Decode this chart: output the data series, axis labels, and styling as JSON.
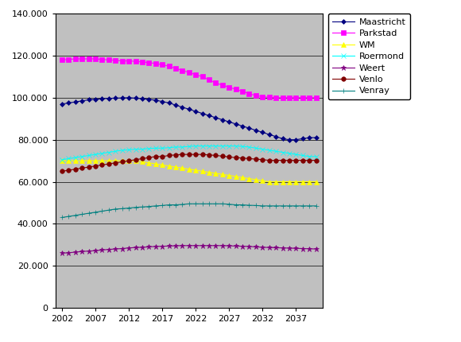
{
  "years": [
    2002,
    2003,
    2004,
    2005,
    2006,
    2007,
    2008,
    2009,
    2010,
    2011,
    2012,
    2013,
    2014,
    2015,
    2016,
    2017,
    2018,
    2019,
    2020,
    2021,
    2022,
    2023,
    2024,
    2025,
    2026,
    2027,
    2028,
    2029,
    2030,
    2031,
    2032,
    2033,
    2034,
    2035,
    2036,
    2037,
    2038,
    2039,
    2040
  ],
  "Maastricht": [
    97000,
    97500,
    98000,
    98500,
    99000,
    99200,
    99500,
    99700,
    99800,
    99900,
    100000,
    99800,
    99500,
    99200,
    98800,
    98200,
    97500,
    96500,
    95500,
    94500,
    93500,
    92500,
    91500,
    90500,
    89500,
    88500,
    87500,
    86500,
    85500,
    84500,
    83500,
    82500,
    81500,
    80500,
    80000,
    80000,
    80500,
    81000,
    81000
  ],
  "Parkstad": [
    118000,
    118200,
    118500,
    118500,
    118500,
    118500,
    118200,
    118000,
    117800,
    117500,
    117500,
    117300,
    117000,
    116700,
    116300,
    115700,
    115000,
    114000,
    113000,
    112000,
    111000,
    110000,
    108500,
    107000,
    106000,
    105000,
    104000,
    103000,
    102000,
    101000,
    100500,
    100200,
    100000,
    100000,
    100000,
    100000,
    100000,
    100000,
    100000
  ],
  "WM": [
    70000,
    70000,
    70000,
    70000,
    70000,
    70000,
    70000,
    70000,
    70000,
    70000,
    70000,
    70000,
    69500,
    69000,
    68500,
    68000,
    67500,
    67000,
    66500,
    66000,
    65500,
    65000,
    64500,
    64000,
    63500,
    63000,
    62500,
    62000,
    61500,
    61000,
    60500,
    60000,
    60000,
    60000,
    60000,
    60000,
    60000,
    60000,
    60000
  ],
  "Roermond": [
    70500,
    71000,
    71500,
    72000,
    72500,
    73000,
    73500,
    74000,
    74500,
    75000,
    75200,
    75500,
    75500,
    75800,
    76000,
    76000,
    76200,
    76500,
    76500,
    76800,
    77000,
    77000,
    77000,
    77000,
    77000,
    77000,
    77000,
    76800,
    76500,
    76000,
    75500,
    75000,
    74500,
    74000,
    73500,
    73000,
    72500,
    72000,
    72000
  ],
  "Weert": [
    26000,
    26200,
    26500,
    26800,
    27000,
    27200,
    27500,
    27800,
    28000,
    28200,
    28500,
    28700,
    28800,
    29000,
    29200,
    29300,
    29400,
    29500,
    29600,
    29600,
    29600,
    29600,
    29600,
    29600,
    29600,
    29500,
    29400,
    29300,
    29200,
    29000,
    28800,
    28700,
    28600,
    28500,
    28400,
    28300,
    28200,
    28100,
    28000
  ],
  "Venlo": [
    65000,
    65500,
    66000,
    66500,
    67000,
    67500,
    68000,
    68500,
    69000,
    69500,
    70000,
    70500,
    71000,
    71500,
    72000,
    72000,
    72500,
    72800,
    73000,
    73000,
    73000,
    73000,
    72800,
    72500,
    72200,
    71800,
    71500,
    71300,
    71000,
    70800,
    70500,
    70200,
    70200,
    70200,
    70200,
    70200,
    70200,
    70200,
    70200
  ],
  "Venray": [
    43000,
    43500,
    44000,
    44500,
    45000,
    45500,
    46000,
    46500,
    47000,
    47200,
    47500,
    47800,
    48000,
    48200,
    48500,
    48700,
    49000,
    49000,
    49200,
    49500,
    49500,
    49500,
    49500,
    49500,
    49500,
    49300,
    49000,
    49000,
    48800,
    48700,
    48500,
    48500,
    48500,
    48500,
    48500,
    48500,
    48500,
    48500,
    48500
  ],
  "colors": {
    "Maastricht": "#000080",
    "Parkstad": "#FF00FF",
    "WM": "#FFFF00",
    "Roermond": "#00FFFF",
    "Weert": "#800080",
    "Venlo": "#800000",
    "Venray": "#008080"
  },
  "markers": {
    "Maastricht": "D",
    "Parkstad": "s",
    "WM": "^",
    "Roermond": "x",
    "Weert": "*",
    "Venlo": "o",
    "Venray": "+"
  },
  "markersizes": {
    "Maastricht": 3,
    "Parkstad": 4,
    "WM": 4,
    "Roermond": 4,
    "Weert": 5,
    "Venlo": 4,
    "Venray": 5
  },
  "ylim": [
    0,
    140000
  ],
  "yticks": [
    0,
    20000,
    40000,
    60000,
    80000,
    100000,
    120000,
    140000
  ],
  "xticks": [
    2002,
    2007,
    2012,
    2017,
    2022,
    2027,
    2032,
    2037
  ],
  "plot_bg_color": "#C0C0C0",
  "fig_bg_color": "#FFFFFF",
  "series_order": [
    "Maastricht",
    "Parkstad",
    "WM",
    "Roermond",
    "Weert",
    "Venlo",
    "Venray"
  ]
}
